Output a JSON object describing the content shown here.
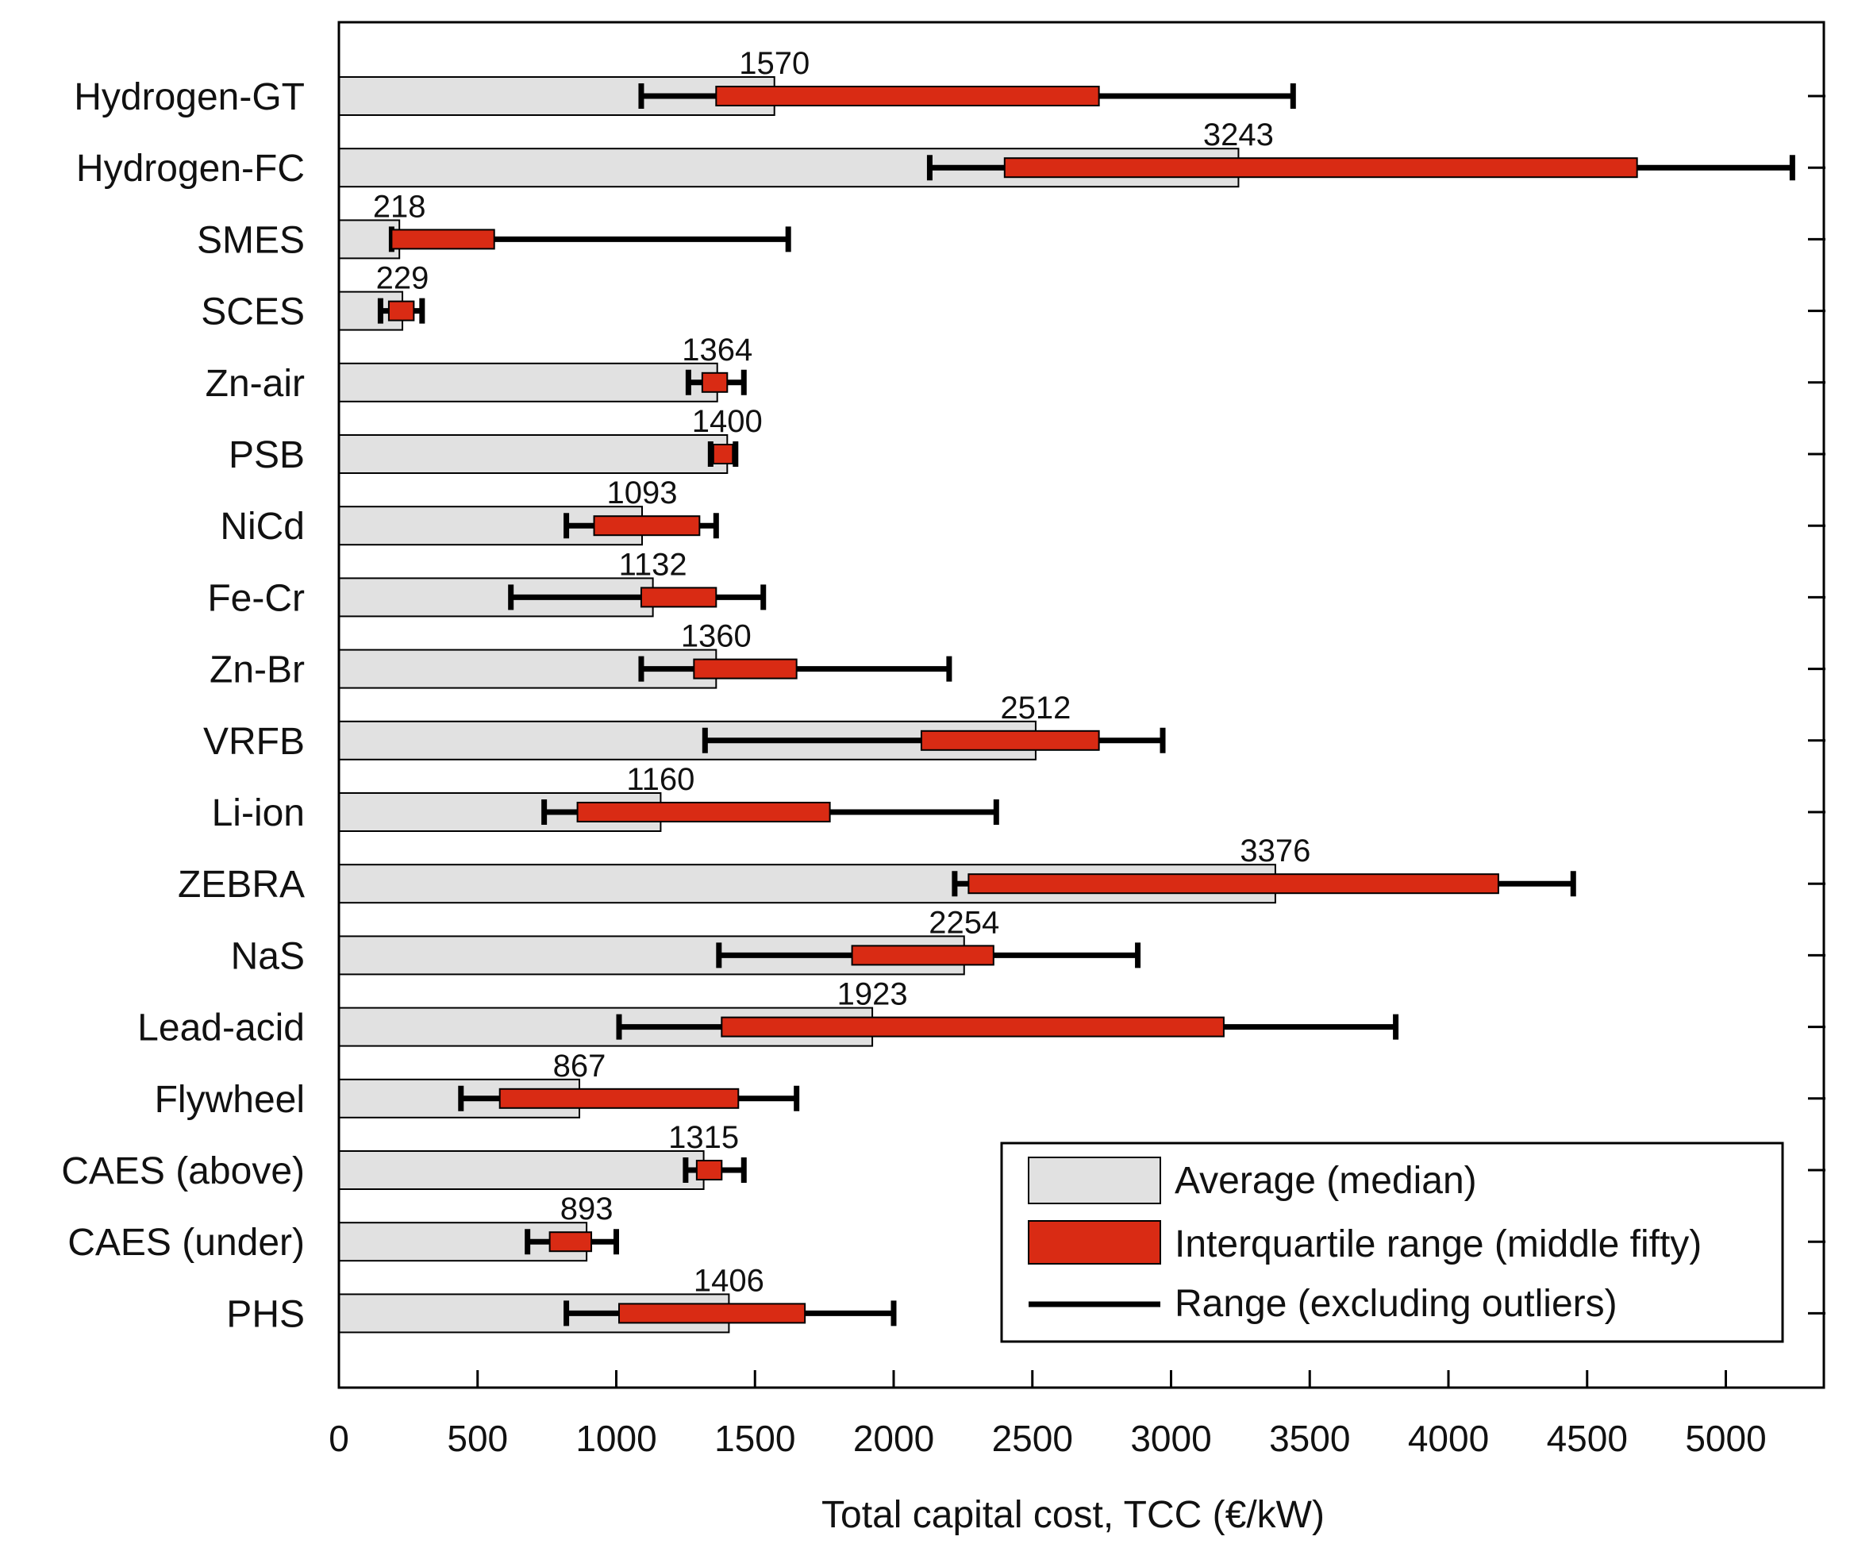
{
  "chart_data": {
    "type": "bar",
    "orientation": "horizontal",
    "categories": [
      "Hydrogen-GT",
      "Hydrogen-FC",
      "SMES",
      "SCES",
      "Zn-air",
      "PSB",
      "NiCd",
      "Fe-Cr",
      "Zn-Br",
      "VRFB",
      "Li-ion",
      "ZEBRA",
      "NaS",
      "Lead-acid",
      "Flywheel",
      "CAES (above)",
      "CAES (under)",
      "PHS"
    ],
    "series": [
      {
        "name": "Average (median)",
        "values": [
          1570,
          3243,
          218,
          229,
          1364,
          1400,
          1093,
          1132,
          1360,
          2512,
          1160,
          3376,
          2254,
          1923,
          867,
          1315,
          893,
          1406
        ]
      },
      {
        "name": "Interquartile range (middle fifty)",
        "values": [
          [
            1360,
            2740
          ],
          [
            2400,
            4680
          ],
          [
            190,
            560
          ],
          [
            180,
            270
          ],
          [
            1310,
            1400
          ],
          [
            1350,
            1420
          ],
          [
            920,
            1300
          ],
          [
            1090,
            1360
          ],
          [
            1280,
            1650
          ],
          [
            2100,
            2740
          ],
          [
            860,
            1770
          ],
          [
            2270,
            4180
          ],
          [
            1850,
            2360
          ],
          [
            1380,
            3190
          ],
          [
            580,
            1440
          ],
          [
            1290,
            1380
          ],
          [
            760,
            910
          ],
          [
            1010,
            1680
          ]
        ]
      },
      {
        "name": "Range (excluding outliers)",
        "values": [
          [
            1090,
            3440
          ],
          [
            2130,
            5240
          ],
          [
            190,
            1620
          ],
          [
            150,
            300
          ],
          [
            1260,
            1460
          ],
          [
            1340,
            1430
          ],
          [
            820,
            1360
          ],
          [
            620,
            1530
          ],
          [
            1090,
            2200
          ],
          [
            1320,
            2970
          ],
          [
            740,
            2370
          ],
          [
            2220,
            4450
          ],
          [
            1370,
            2880
          ],
          [
            1010,
            3810
          ],
          [
            440,
            1650
          ],
          [
            1250,
            1460
          ],
          [
            680,
            1000
          ],
          [
            820,
            2000
          ]
        ]
      }
    ],
    "value_labels": [
      "1570",
      "3243",
      "218",
      "229",
      "1364",
      "1400",
      "1093",
      "1132",
      "1360",
      "2512",
      "1160",
      "3376",
      "2254",
      "1923",
      "867",
      "1315",
      "893",
      "1406"
    ],
    "xlim": [
      0,
      5400
    ],
    "xticks": [
      0,
      500,
      1000,
      1500,
      2000,
      2500,
      3000,
      3500,
      4000,
      4500,
      5000
    ],
    "xlabel": "Total capital cost, TCC (€/kW)",
    "ylabel": "",
    "title": "",
    "legend_position": "bottom-right",
    "grid": false,
    "colors": {
      "median": "#e1e1e1",
      "iqr": "#d92b14",
      "range": "#000000",
      "axis": "#000000"
    }
  }
}
